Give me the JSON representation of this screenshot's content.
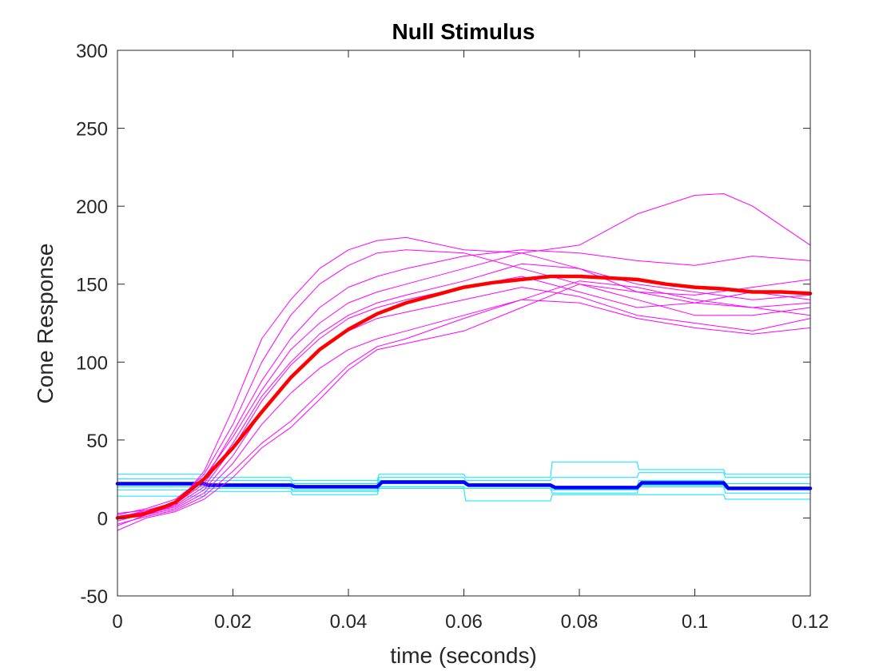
{
  "chart_data": {
    "type": "line",
    "title": "Null Stimulus",
    "xlabel": "time (seconds)",
    "ylabel": "Cone Response",
    "xlim": [
      0,
      0.12
    ],
    "ylim": [
      -50,
      300
    ],
    "xticks": [
      0,
      0.02,
      0.04,
      0.06,
      0.08,
      0.1,
      0.12
    ],
    "xtick_labels": [
      "0",
      "0.02",
      "0.04",
      "0.06",
      "0.08",
      "0.1",
      "0.12"
    ],
    "yticks": [
      -50,
      0,
      50,
      100,
      150,
      200,
      250,
      300
    ],
    "ytick_labels": [
      "-50",
      "0",
      "50",
      "100",
      "150",
      "200",
      "250",
      "300"
    ],
    "grid": false,
    "colors": {
      "trial_response": "#ff00ff",
      "mean_response": "#ff0000",
      "trial_stimulus": "#00e5ff",
      "mean_stimulus": "#0000ff",
      "axis": "#262626"
    },
    "series": [
      {
        "role": "trial_response",
        "x": [
          0,
          0.005,
          0.01,
          0.015,
          0.02,
          0.025,
          0.03,
          0.035,
          0.04,
          0.045,
          0.05,
          0.06,
          0.07,
          0.08,
          0.09,
          0.1,
          0.105,
          0.11,
          0.12
        ],
        "y": [
          -5,
          2,
          8,
          30,
          70,
          115,
          140,
          160,
          172,
          178,
          180,
          172,
          170,
          175,
          195,
          207,
          208,
          200,
          175
        ]
      },
      {
        "role": "trial_response",
        "x": [
          0,
          0.005,
          0.01,
          0.015,
          0.02,
          0.025,
          0.03,
          0.035,
          0.04,
          0.045,
          0.05,
          0.06,
          0.07,
          0.08,
          0.09,
          0.1,
          0.11,
          0.12
        ],
        "y": [
          3,
          5,
          10,
          28,
          60,
          100,
          130,
          150,
          162,
          170,
          172,
          170,
          160,
          150,
          145,
          143,
          148,
          153
        ]
      },
      {
        "role": "trial_response",
        "x": [
          0,
          0.005,
          0.01,
          0.015,
          0.02,
          0.025,
          0.03,
          0.035,
          0.04,
          0.045,
          0.05,
          0.06,
          0.07,
          0.08,
          0.09,
          0.1,
          0.11,
          0.12
        ],
        "y": [
          0,
          4,
          10,
          24,
          55,
          88,
          115,
          135,
          148,
          155,
          160,
          168,
          172,
          170,
          165,
          162,
          168,
          165
        ]
      },
      {
        "role": "trial_response",
        "x": [
          0,
          0.005,
          0.01,
          0.015,
          0.02,
          0.025,
          0.03,
          0.035,
          0.04,
          0.045,
          0.05,
          0.06,
          0.07,
          0.08,
          0.09,
          0.1,
          0.11,
          0.12
        ],
        "y": [
          2,
          6,
          12,
          26,
          52,
          82,
          108,
          125,
          138,
          145,
          150,
          160,
          170,
          160,
          145,
          138,
          135,
          138
        ]
      },
      {
        "role": "trial_response",
        "x": [
          0,
          0.005,
          0.01,
          0.015,
          0.02,
          0.025,
          0.03,
          0.035,
          0.04,
          0.045,
          0.05,
          0.06,
          0.07,
          0.08,
          0.09,
          0.1,
          0.11,
          0.12
        ],
        "y": [
          0,
          5,
          9,
          22,
          48,
          78,
          100,
          118,
          130,
          138,
          143,
          152,
          163,
          160,
          150,
          145,
          140,
          143
        ]
      },
      {
        "role": "trial_response",
        "x": [
          0,
          0.005,
          0.01,
          0.015,
          0.02,
          0.025,
          0.03,
          0.035,
          0.04,
          0.045,
          0.05,
          0.06,
          0.07,
          0.08,
          0.09,
          0.1,
          0.11,
          0.12
        ],
        "y": [
          1,
          4,
          8,
          20,
          45,
          75,
          98,
          115,
          128,
          135,
          140,
          148,
          155,
          145,
          135,
          138,
          145,
          140
        ]
      },
      {
        "role": "trial_response",
        "x": [
          0,
          0.005,
          0.01,
          0.015,
          0.02,
          0.025,
          0.03,
          0.035,
          0.04,
          0.045,
          0.05,
          0.06,
          0.07,
          0.08,
          0.09,
          0.1,
          0.11,
          0.12
        ],
        "y": [
          -2,
          3,
          7,
          18,
          40,
          68,
          90,
          108,
          120,
          128,
          132,
          140,
          148,
          142,
          130,
          125,
          120,
          128
        ]
      },
      {
        "role": "trial_response",
        "x": [
          0,
          0.005,
          0.01,
          0.015,
          0.02,
          0.025,
          0.03,
          0.035,
          0.04,
          0.045,
          0.05,
          0.06,
          0.07,
          0.08,
          0.09,
          0.1,
          0.11,
          0.12
        ],
        "y": [
          0,
          2,
          6,
          16,
          35,
          60,
          80,
          96,
          108,
          115,
          120,
          130,
          140,
          138,
          128,
          122,
          118,
          122
        ]
      },
      {
        "role": "trial_response",
        "x": [
          0,
          0.005,
          0.01,
          0.015,
          0.02,
          0.025,
          0.03,
          0.035,
          0.04,
          0.045,
          0.05,
          0.06,
          0.07,
          0.08,
          0.09,
          0.1,
          0.11,
          0.12
        ],
        "y": [
          -4,
          1,
          5,
          14,
          30,
          48,
          62,
          80,
          98,
          110,
          115,
          128,
          140,
          152,
          148,
          140,
          135,
          130
        ]
      },
      {
        "role": "trial_response",
        "x": [
          0,
          0.005,
          0.01,
          0.015,
          0.02,
          0.025,
          0.03,
          0.035,
          0.04,
          0.045,
          0.05,
          0.06,
          0.07,
          0.08,
          0.09,
          0.1,
          0.11,
          0.12
        ],
        "y": [
          -8,
          0,
          4,
          12,
          26,
          45,
          58,
          76,
          95,
          108,
          112,
          120,
          135,
          150,
          140,
          130,
          130,
          135
        ]
      },
      {
        "role": "mean_response",
        "x": [
          0,
          0.004,
          0.008,
          0.01,
          0.012,
          0.015,
          0.02,
          0.025,
          0.03,
          0.035,
          0.04,
          0.045,
          0.05,
          0.055,
          0.06,
          0.065,
          0.07,
          0.075,
          0.08,
          0.085,
          0.09,
          0.095,
          0.1,
          0.105,
          0.11,
          0.115,
          0.12
        ],
        "y": [
          0,
          2,
          7,
          10,
          16,
          25,
          45,
          68,
          90,
          108,
          121,
          131,
          138,
          143,
          148,
          151,
          153,
          155,
          155,
          154,
          153,
          150,
          148,
          147,
          145,
          145,
          144
        ]
      },
      {
        "role": "trial_stimulus",
        "x": [
          0,
          0.015,
          0.0153,
          0.03,
          0.0303,
          0.045,
          0.0453,
          0.06,
          0.0603,
          0.075,
          0.0753,
          0.09,
          0.0903,
          0.105,
          0.1053,
          0.12
        ],
        "y": [
          28,
          28,
          26,
          26,
          24,
          24,
          28,
          28,
          26,
          26,
          36,
          36,
          31,
          31,
          28,
          28
        ]
      },
      {
        "role": "trial_stimulus",
        "x": [
          0,
          0.015,
          0.0153,
          0.03,
          0.0303,
          0.045,
          0.0453,
          0.06,
          0.0603,
          0.075,
          0.0753,
          0.09,
          0.0903,
          0.105,
          0.1053,
          0.12
        ],
        "y": [
          25,
          25,
          24,
          24,
          22,
          22,
          26,
          26,
          24,
          24,
          26,
          26,
          29,
          29,
          26,
          26
        ]
      },
      {
        "role": "trial_stimulus",
        "x": [
          0,
          0.015,
          0.0153,
          0.03,
          0.0303,
          0.045,
          0.0453,
          0.06,
          0.0603,
          0.075,
          0.0753,
          0.09,
          0.0903,
          0.105,
          0.1053,
          0.12
        ],
        "y": [
          22,
          22,
          21,
          21,
          20,
          20,
          24,
          24,
          22,
          22,
          20,
          20,
          24,
          24,
          22,
          22
        ]
      },
      {
        "role": "trial_stimulus",
        "x": [
          0,
          0.015,
          0.0153,
          0.03,
          0.0303,
          0.045,
          0.0453,
          0.06,
          0.0603,
          0.075,
          0.0753,
          0.09,
          0.0903,
          0.105,
          0.1053,
          0.12
        ],
        "y": [
          20,
          20,
          20,
          20,
          18,
          18,
          22,
          22,
          21,
          21,
          18,
          18,
          21,
          21,
          19,
          19
        ]
      },
      {
        "role": "trial_stimulus",
        "x": [
          0,
          0.015,
          0.0153,
          0.03,
          0.0303,
          0.045,
          0.0453,
          0.06,
          0.0603,
          0.075,
          0.0753,
          0.09,
          0.0903,
          0.105,
          0.1053,
          0.12
        ],
        "y": [
          18,
          18,
          19,
          19,
          17,
          17,
          20,
          20,
          19,
          19,
          16,
          16,
          20,
          20,
          16,
          16
        ]
      },
      {
        "role": "trial_stimulus",
        "x": [
          0,
          0.015,
          0.0153,
          0.03,
          0.0303,
          0.045,
          0.0453,
          0.06,
          0.0603,
          0.075,
          0.0753,
          0.09,
          0.0903,
          0.105,
          0.1053,
          0.12
        ],
        "y": [
          14,
          14,
          17,
          17,
          15,
          15,
          19,
          19,
          11,
          11,
          15,
          15,
          15,
          15,
          12,
          12
        ]
      },
      {
        "role": "mean_stimulus",
        "x": [
          0,
          0.015,
          0.0158,
          0.03,
          0.0308,
          0.045,
          0.0458,
          0.06,
          0.0608,
          0.075,
          0.0758,
          0.09,
          0.0908,
          0.105,
          0.1058,
          0.12
        ],
        "y": [
          22,
          22,
          21,
          21,
          20,
          20,
          23,
          23,
          21,
          21,
          19.5,
          19.5,
          22.5,
          22.5,
          19,
          19
        ]
      }
    ]
  }
}
